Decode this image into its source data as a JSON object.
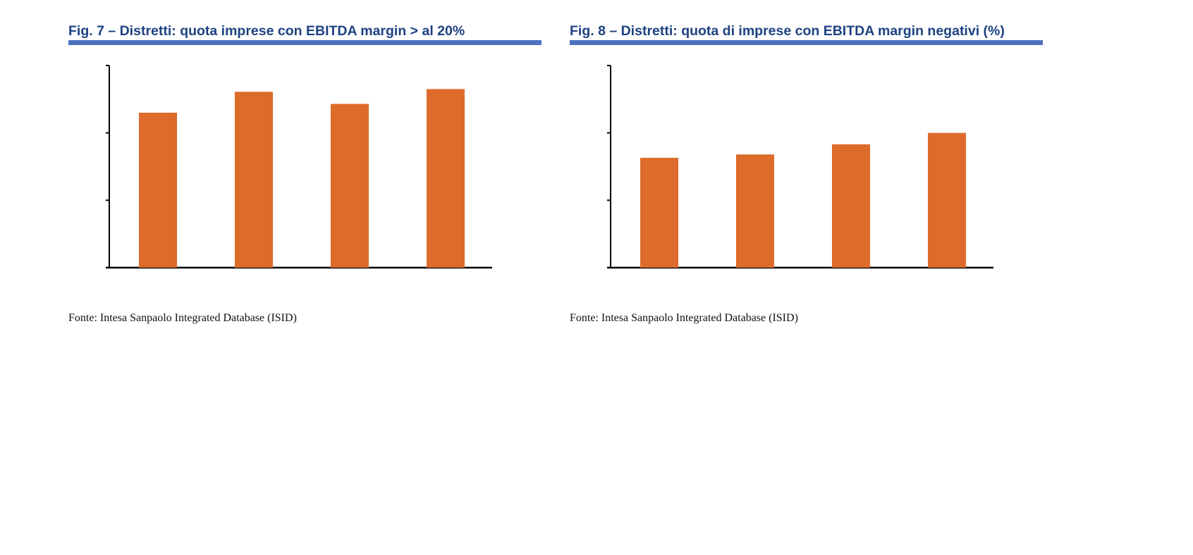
{
  "colors": {
    "bar": "#dd6b2a",
    "title": "#1d4282",
    "rule": "#4d72bf",
    "axis": "#000000"
  },
  "chart_data": [
    {
      "type": "bar",
      "title": "Fig. 7 – Distretti: quota imprese con EBITDA margin > al 20%",
      "categories": [
        "",
        "",
        "",
        ""
      ],
      "values": [
        2.3,
        2.61,
        2.43,
        2.65
      ],
      "ylim": [
        0,
        3
      ],
      "yticks": [
        0,
        1,
        2,
        3
      ],
      "grid": false,
      "source": "Fonte: Intesa Sanpaolo Integrated Database (ISID)"
    },
    {
      "type": "bar",
      "title": "Fig. 8 – Distretti: quota di imprese con EBITDA margin negativi (%)",
      "categories": [
        "",
        "",
        "",
        ""
      ],
      "values": [
        1.63,
        1.68,
        1.83,
        2.0
      ],
      "ylim": [
        0,
        3
      ],
      "yticks": [
        0,
        1,
        2,
        3
      ],
      "grid": false,
      "source": "Fonte: Intesa Sanpaolo Integrated Database (ISID)"
    }
  ]
}
